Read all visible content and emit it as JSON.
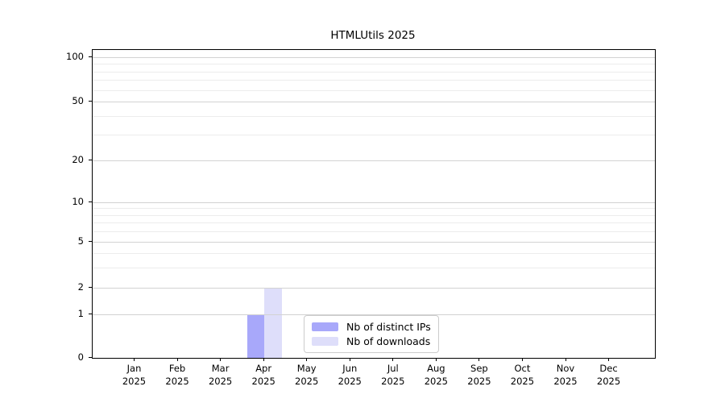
{
  "chart_data": {
    "type": "bar",
    "title": "HTMLUtils 2025",
    "categories": [
      "Jan 2025",
      "Feb 2025",
      "Mar 2025",
      "Apr 2025",
      "May 2025",
      "Jun 2025",
      "Jul 2025",
      "Aug 2025",
      "Sep 2025",
      "Oct 2025",
      "Nov 2025",
      "Dec 2025"
    ],
    "series": [
      {
        "name": "Nb of distinct IPs",
        "color": "#a8a8fa",
        "values": [
          0,
          0,
          0,
          1,
          0,
          0,
          0,
          0,
          0,
          0,
          0,
          0
        ]
      },
      {
        "name": "Nb of downloads",
        "color": "#dedefa",
        "values": [
          0,
          0,
          0,
          2,
          0,
          0,
          0,
          0,
          0,
          0,
          0,
          0
        ]
      }
    ],
    "xlabel": "",
    "ylabel": "",
    "y_axis": {
      "scale": "symlog",
      "major_ticks": [
        0,
        1,
        2,
        5,
        10,
        20,
        50,
        100
      ],
      "minor_ticks": [
        3,
        4,
        6,
        7,
        8,
        9,
        30,
        40,
        60,
        70,
        80,
        90
      ],
      "range": [
        0,
        110
      ]
    },
    "grid": "horizontal",
    "legend_position": "lower center"
  },
  "colors": {
    "grid_major": "#d2d2d2",
    "grid_minor": "#ececec",
    "axis": "#000000",
    "background": "#ffffff"
  }
}
